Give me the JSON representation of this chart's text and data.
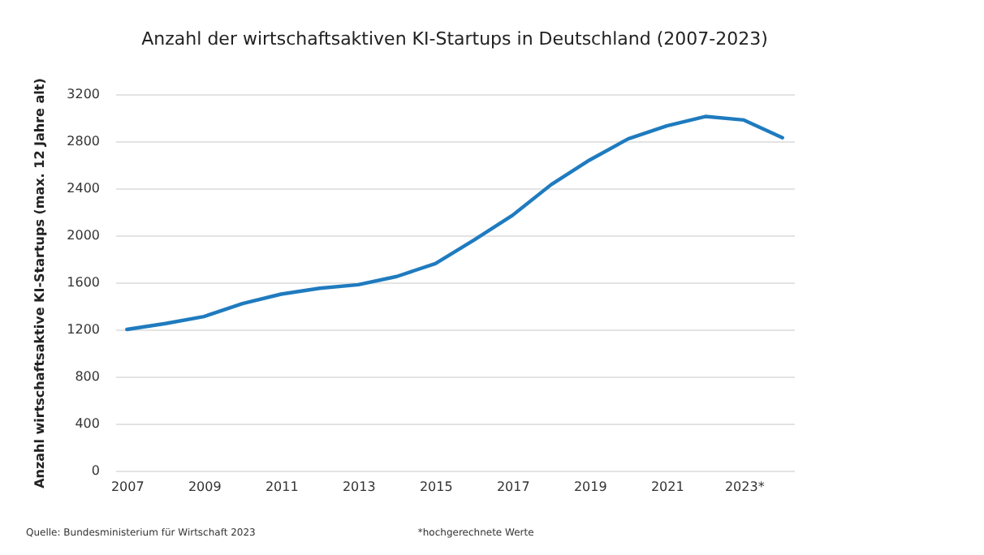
{
  "chart_data": {
    "type": "line",
    "title": "Anzahl der wirtschaftsaktiven KI-Startups in Deutschland (2007-2023)",
    "ylabel": "Anzahl wirtschaftsaktive KI-Startups (max. 12 Jahre alt)",
    "categories": [
      "2007",
      null,
      "2009",
      null,
      "2011",
      null,
      "2013",
      null,
      "2015",
      null,
      "2017",
      null,
      "2019",
      null,
      "2021",
      null,
      "2023*",
      null
    ],
    "series": [
      {
        "color": "#1f7bbf",
        "values": [
          1200,
          1250,
          1310,
          1420,
          1500,
          1550,
          1580,
          1650,
          1760,
          1960,
          2170,
          2430,
          2640,
          2820,
          2930,
          3010,
          2980,
          2830
        ]
      }
    ],
    "ylim": [
      0,
      3200
    ],
    "yticks": [
      0,
      400,
      800,
      1200,
      1600,
      2000,
      2400,
      2800,
      3200
    ],
    "grid": "y",
    "marker": "none",
    "line_style": "solid",
    "annotations": [
      "Quelle: Bundesministerium für Wirtschaft 2023",
      "*hochgerechnete Werte"
    ]
  }
}
